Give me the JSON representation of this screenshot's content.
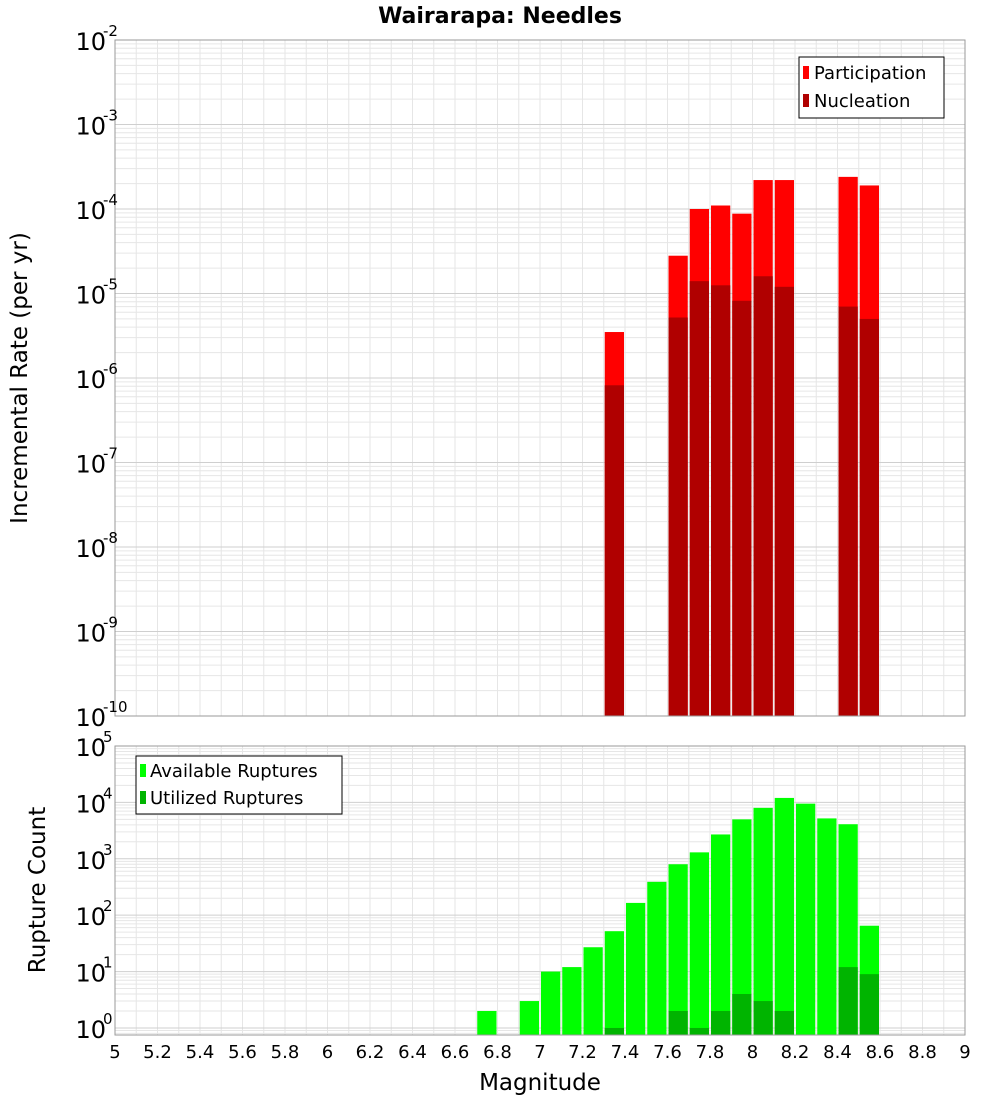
{
  "title": "Wairarapa: Needles",
  "chart_data": [
    {
      "type": "bar",
      "panel": "top",
      "title": "Wairarapa: Needles",
      "xlabel": "",
      "ylabel": "Incremental Rate (per yr)",
      "xlim": [
        5,
        9
      ],
      "ylim": [
        1e-10,
        0.01
      ],
      "yscale": "log",
      "grid": true,
      "legend_position": "top-right",
      "bin_width": 0.1,
      "y_tick_exponents": [
        -10,
        -9,
        -8,
        -7,
        -6,
        -5,
        -4,
        -3,
        -2
      ],
      "series": [
        {
          "name": "Participation",
          "color": "#ff0000",
          "x": [
            7.35,
            7.65,
            7.75,
            7.85,
            7.95,
            8.05,
            8.15,
            8.45,
            8.55
          ],
          "values": [
            3.5e-06,
            2.8e-05,
            0.0001,
            0.00011,
            8.8e-05,
            0.00022,
            0.00022,
            0.00024,
            0.00019
          ]
        },
        {
          "name": "Nucleation",
          "color": "#b00000",
          "x": [
            7.35,
            7.65,
            7.75,
            7.85,
            7.95,
            8.05,
            8.15,
            8.45,
            8.55
          ],
          "values": [
            8.2e-07,
            5.2e-06,
            1.4e-05,
            1.25e-05,
            8.2e-06,
            1.6e-05,
            1.2e-05,
            7e-06,
            5e-06
          ]
        }
      ]
    },
    {
      "type": "bar",
      "panel": "bottom",
      "xlabel": "Magnitude",
      "ylabel": "Rupture Count",
      "xlim": [
        5,
        9
      ],
      "ylim": [
        0.75,
        100000.0
      ],
      "yscale": "log",
      "grid": true,
      "legend_position": "top-left",
      "bin_width": 0.1,
      "x_ticks": [
        "5",
        "5.2",
        "5.4",
        "5.6",
        "5.8",
        "6",
        "6.2",
        "6.4",
        "6.6",
        "6.8",
        "7",
        "7.2",
        "7.4",
        "7.6",
        "7.8",
        "8",
        "8.2",
        "8.4",
        "8.6",
        "8.8",
        "9"
      ],
      "y_tick_exponents": [
        0,
        1,
        2,
        3,
        4,
        5
      ],
      "series": [
        {
          "name": "Available Ruptures",
          "color": "#00ff00",
          "x": [
            6.75,
            6.95,
            7.05,
            7.15,
            7.25,
            7.35,
            7.45,
            7.55,
            7.65,
            7.75,
            7.85,
            7.95,
            8.05,
            8.15,
            8.25,
            8.35,
            8.45,
            8.55
          ],
          "values": [
            2,
            3,
            10,
            12,
            27,
            52,
            165,
            390,
            800,
            1300,
            2700,
            5000,
            8000,
            12000,
            9500,
            5200,
            4100,
            65
          ]
        },
        {
          "name": "Utilized Ruptures",
          "color": "#00b400",
          "x": [
            7.35,
            7.65,
            7.75,
            7.85,
            7.95,
            8.05,
            8.15,
            8.45,
            8.55
          ],
          "values": [
            1,
            2,
            1,
            2,
            4,
            3,
            2,
            12,
            9
          ]
        }
      ]
    }
  ]
}
